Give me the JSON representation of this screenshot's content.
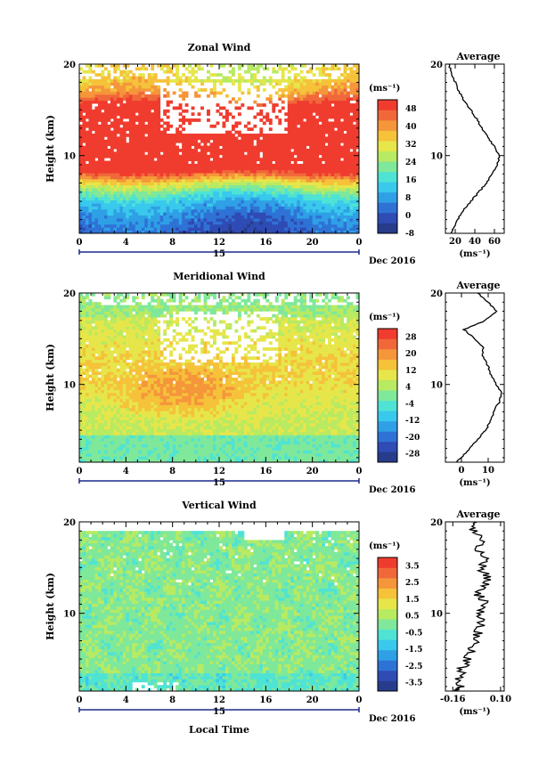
{
  "figure": {
    "xlabel": "Local Time",
    "date_label": "Dec 2016",
    "day_label": "15",
    "ylabel": "Height (km)",
    "unit": "(ms⁻¹)"
  },
  "chart_data": [
    {
      "type": "heatmap",
      "title": "Zonal Wind",
      "xlabel": "Local Time",
      "ylabel": "Height (km)",
      "xlim": [
        0,
        24
      ],
      "ylim": [
        1.5,
        20
      ],
      "x_ticks": [
        "0",
        "4",
        "8",
        "12",
        "16",
        "20",
        "0"
      ],
      "y_ticks": [
        "10",
        "20"
      ],
      "colorbar": {
        "unit": "(ms⁻¹)",
        "min": -8,
        "max": 52,
        "labels": [
          "48",
          "40",
          "32",
          "24",
          "16",
          "8",
          "0",
          "-8"
        ],
        "colors": [
          "#283c8c",
          "#2f4bb4",
          "#2f72d6",
          "#2fa0e6",
          "#39c9ec",
          "#4fe3d4",
          "#7fe89a",
          "#b8ea62",
          "#e6e64a",
          "#f5c23a",
          "#f5963a",
          "#f0683a",
          "#f03c2e"
        ]
      },
      "profile": {
        "title": "Average",
        "xlabel": "(ms⁻¹)",
        "xlim": [
          10,
          70
        ],
        "x_ticks": [
          "20",
          "40",
          "60"
        ],
        "heights": [
          1.5,
          2,
          3,
          4,
          5,
          6,
          7,
          8,
          9,
          10,
          11,
          12,
          13,
          14,
          15,
          16,
          17,
          18,
          19,
          20
        ],
        "values": [
          16,
          18,
          22,
          28,
          36,
          44,
          52,
          58,
          63,
          65,
          60,
          53,
          47,
          42,
          36,
          29,
          24,
          20,
          16,
          14
        ]
      }
    },
    {
      "type": "heatmap",
      "title": "Meridional Wind",
      "xlabel": "Local Time",
      "ylabel": "Height (km)",
      "xlim": [
        0,
        24
      ],
      "ylim": [
        1.5,
        20
      ],
      "x_ticks": [
        "0",
        "4",
        "8",
        "12",
        "16",
        "20",
        "0"
      ],
      "y_ticks": [
        "10",
        "20"
      ],
      "colorbar": {
        "unit": "(ms⁻¹)",
        "min": -32,
        "max": 32,
        "labels": [
          "28",
          "20",
          "12",
          "4",
          "-4",
          "-12",
          "-20",
          "-28"
        ],
        "colors": [
          "#283c8c",
          "#2f4bb4",
          "#2f72d6",
          "#2fa0e6",
          "#39c9ec",
          "#4fe3d4",
          "#7fe89a",
          "#b8ea62",
          "#e6e64a",
          "#f5c23a",
          "#f5963a",
          "#f0683a",
          "#f03c2e"
        ]
      },
      "profile": {
        "title": "Average",
        "xlabel": "(ms⁻¹)",
        "xlim": [
          -6,
          16
        ],
        "x_ticks": [
          "0",
          "10"
        ],
        "heights": [
          1.5,
          2,
          3,
          4,
          5,
          6,
          7,
          8,
          9,
          10,
          11,
          12,
          13,
          14,
          15,
          16,
          17,
          18,
          19,
          20
        ],
        "values": [
          -2,
          0,
          3,
          6,
          9,
          11,
          12,
          14,
          15,
          13,
          11,
          10,
          8,
          8,
          5,
          1,
          9,
          13,
          10,
          6
        ]
      }
    },
    {
      "type": "heatmap",
      "title": "Vertical Wind",
      "xlabel": "Local Time",
      "ylabel": "Height (km)",
      "xlim": [
        0,
        24
      ],
      "ylim": [
        1.5,
        20
      ],
      "x_ticks": [
        "0",
        "4",
        "8",
        "12",
        "16",
        "20",
        "0"
      ],
      "y_ticks": [
        "10",
        "20"
      ],
      "colorbar": {
        "unit": "(ms⁻¹)",
        "min": -4,
        "max": 4,
        "labels": [
          "3.5",
          "2.5",
          "1.5",
          "0.5",
          "-0.5",
          "-1.5",
          "-2.5",
          "-3.5"
        ],
        "colors": [
          "#283c8c",
          "#2f4bb4",
          "#2f72d6",
          "#2fa0e6",
          "#39c9ec",
          "#4fe3d4",
          "#7fe89a",
          "#b8ea62",
          "#e6e64a",
          "#f5c23a",
          "#f5963a",
          "#f0683a",
          "#f03c2e"
        ]
      },
      "profile": {
        "title": "Average",
        "xlabel": "(ms⁻¹)",
        "xlim": [
          -0.2,
          0.12
        ],
        "x_ticks": [
          "-0.16",
          "0.10"
        ],
        "heights": [
          1.5,
          2,
          3,
          4,
          5,
          6,
          7,
          8,
          9,
          10,
          11,
          12,
          13,
          14,
          15,
          16,
          17,
          18,
          19,
          20
        ],
        "values": [
          -0.14,
          -0.12,
          -0.13,
          -0.11,
          -0.08,
          -0.06,
          -0.04,
          -0.02,
          0.0,
          -0.01,
          0.02,
          -0.02,
          0.01,
          0.03,
          -0.01,
          0.04,
          -0.04,
          0.0,
          -0.05,
          -0.03
        ]
      }
    }
  ]
}
